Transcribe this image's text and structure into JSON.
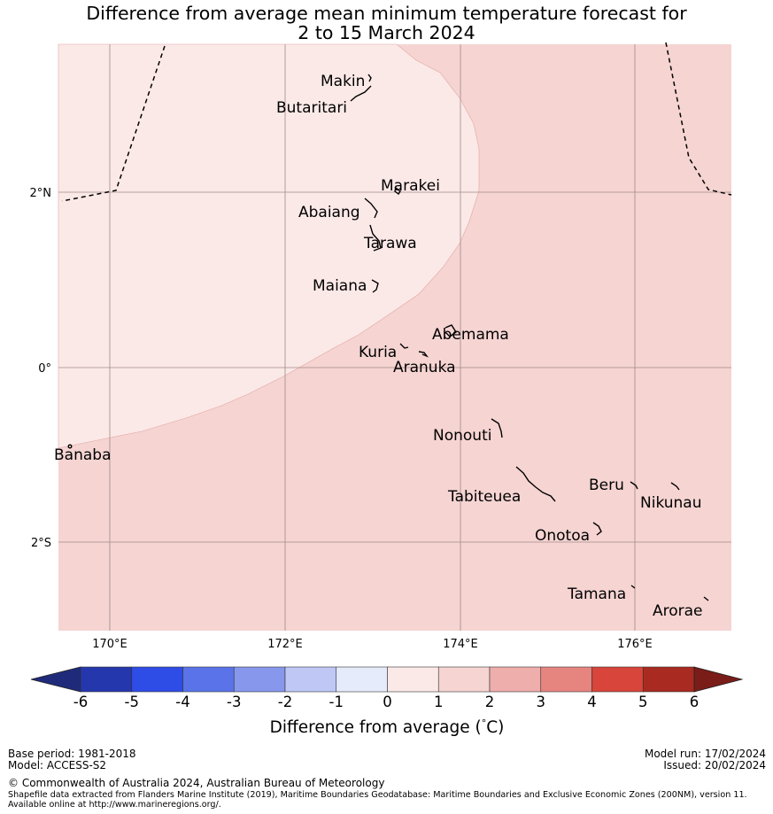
{
  "title_line1": "Difference from average mean minimum temperature forecast for",
  "title_line2": "2 to 15 March 2024",
  "map": {
    "lat_labels": [
      "2°N",
      "0°",
      "2°S"
    ],
    "lon_labels": [
      "170°E",
      "172°E",
      "174°E",
      "176°E"
    ],
    "places": [
      "Makin",
      "Butaritari",
      "Marakei",
      "Abaiang",
      "Tarawa",
      "Maiana",
      "Abemama",
      "Kuria",
      "Aranuka",
      "Banaba",
      "Nonouti",
      "Beru",
      "Tabiteuea",
      "Nikunau",
      "Onotoa",
      "Tamana",
      "Arorae"
    ]
  },
  "legend": {
    "ticks": [
      "-6",
      "-5",
      "-4",
      "-3",
      "-2",
      "-1",
      "0",
      "1",
      "2",
      "3",
      "4",
      "5",
      "6"
    ],
    "label": "Difference from average (",
    "unit": "C)",
    "degree": "°",
    "colors": [
      "#2437ad",
      "#2e4ce6",
      "#5a73e8",
      "#8797ec",
      "#bfc8f5",
      "#e5ebfb",
      "#fbe9e7",
      "#f5d4d2",
      "#eeaeab",
      "#e6847f",
      "#d8453a",
      "#a82a21"
    ],
    "low_extend": "#1f2b7a",
    "high_extend": "#7a1c18"
  },
  "footer": {
    "base_period": "Base period: 1981-2018",
    "model": "Model: ACCESS-S2",
    "model_run": "Model run: 17/02/2024",
    "issued": "Issued: 20/02/2024",
    "copyright": "© Commonwealth of Australia 2024, Australian Bureau of Meteorology",
    "shapefile": "Shapefile data extracted from Flanders Marine Institute (2019), Maritime Boundaries Geodatabase: Maritime Boundaries and Exclusive Economic Zones (200NM), version 11. Available online at http://www.marineregions.org/."
  }
}
